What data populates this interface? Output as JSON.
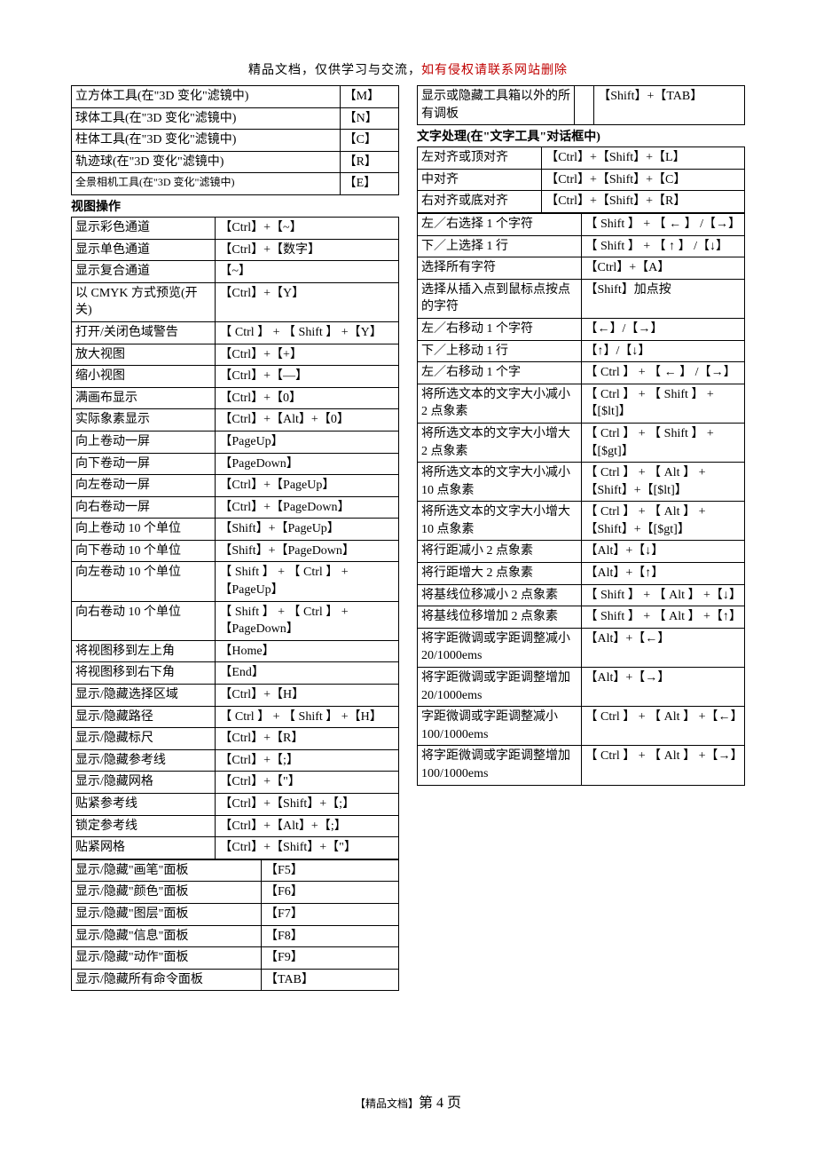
{
  "header": {
    "black": "精品文档，仅供学习与交流，",
    "red": "如有侵权请联系网站删除"
  },
  "footer": {
    "label": "【精品文档】",
    "page": "第 4 页"
  },
  "left": {
    "tools3d": [
      {
        "name": "立方体工具(在\"3D 变化\"滤镜中)",
        "key": "【M】"
      },
      {
        "name": "球体工具(在\"3D 变化\"滤镜中)",
        "key": "【N】"
      },
      {
        "name": "柱体工具(在\"3D 变化\"滤镜中)",
        "key": "【C】"
      },
      {
        "name": "轨迹球(在\"3D 变化\"滤镜中)",
        "key": "【R】"
      },
      {
        "name": "全景相机工具(在\"3D 变化\"滤镜中)",
        "key": "【E】",
        "small": true
      }
    ],
    "section_view": "视图操作",
    "view": [
      {
        "name": "显示彩色通道",
        "key": "【Ctrl】+【~】"
      },
      {
        "name": "显示单色通道",
        "key": "【Ctrl】+【数字】"
      },
      {
        "name": "显示复合通道",
        "key": "【~】"
      },
      {
        "name": "以 CMYK 方式预览(开关)",
        "key": "【Ctrl】+【Y】"
      },
      {
        "name": "打开/关闭色域警告",
        "key": "【 Ctrl 】 + 【 Shift 】 +【Y】"
      },
      {
        "name": "放大视图",
        "key": "【Ctrl】+【+】"
      },
      {
        "name": "缩小视图",
        "key": "【Ctrl】+【—】"
      },
      {
        "name": "满画布显示",
        "key": "【Ctrl】+【0】"
      },
      {
        "name": "实际象素显示",
        "key": "【Ctrl】+【Alt】+【0】"
      },
      {
        "name": "向上卷动一屏",
        "key": "【PageUp】"
      },
      {
        "name": "向下卷动一屏",
        "key": "【PageDown】"
      },
      {
        "name": "向左卷动一屏",
        "key": "【Ctrl】+【PageUp】"
      },
      {
        "name": "向右卷动一屏",
        "key": "【Ctrl】+【PageDown】"
      },
      {
        "name": "向上卷动 10 个单位",
        "key": "【Shift】+【PageUp】"
      },
      {
        "name": "向下卷动 10 个单位",
        "key": "【Shift】+【PageDown】"
      },
      {
        "name": "向左卷动 10 个单位",
        "key": "【 Shift 】 + 【 Ctrl 】 +【PageUp】"
      },
      {
        "name": "向右卷动 10 个单位",
        "key": "【 Shift 】 + 【 Ctrl 】 +【PageDown】"
      },
      {
        "name": "将视图移到左上角",
        "key": "【Home】"
      },
      {
        "name": "将视图移到右下角",
        "key": "【End】"
      },
      {
        "name": "显示/隐藏选择区域",
        "key": "【Ctrl】+【H】"
      },
      {
        "name": "显示/隐藏路径",
        "key": "【 Ctrl 】 + 【 Shift 】 +【H】"
      },
      {
        "name": "显示/隐藏标尺",
        "key": "【Ctrl】+【R】"
      },
      {
        "name": "显示/隐藏参考线",
        "key": "【Ctrl】+【;】"
      },
      {
        "name": "显示/隐藏网格",
        "key": "【Ctrl】+【\"】"
      },
      {
        "name": "贴紧参考线",
        "key": "【Ctrl】+【Shift】+【;】"
      },
      {
        "name": "锁定参考线",
        "key": "【Ctrl】+【Alt】+【;】"
      },
      {
        "name": "贴紧网格",
        "key": "【Ctrl】+【Shift】+【\"】"
      }
    ],
    "panels": [
      {
        "name": "显示/隐藏\"画笔\"面板",
        "key": "【F5】"
      },
      {
        "name": "显示/隐藏\"颜色\"面板",
        "key": "【F6】"
      },
      {
        "name": "显示/隐藏\"图层\"面板",
        "key": "【F7】"
      },
      {
        "name": "显示/隐藏\"信息\"面板",
        "key": "【F8】"
      },
      {
        "name": "显示/隐藏\"动作\"面板",
        "key": "【F9】"
      },
      {
        "name": "显示/隐藏所有命令面板",
        "key": "【TAB】"
      }
    ]
  },
  "right": {
    "top_name": "显示或隐藏工具箱以外的所有调板",
    "top_key": "【Shift】+【TAB】",
    "section_text": "文字处理(在\"文字工具\"对话框中)",
    "align": [
      {
        "name": "左对齐或顶对齐",
        "key": "【Ctrl】+【Shift】+【L】"
      },
      {
        "name": "中对齐",
        "key": "【Ctrl】+【Shift】+【C】"
      },
      {
        "name": "右对齐或底对齐",
        "key": "【Ctrl】+【Shift】+【R】"
      }
    ],
    "text": [
      {
        "name": "左／右选择 1 个字符",
        "key": "【 Shift 】 + 【 ← 】 /【→】"
      },
      {
        "name": "下／上选择 1 行",
        "key": "【 Shift 】 + 【 ↑ 】 /【↓】"
      },
      {
        "name": "选择所有字符",
        "key": "【Ctrl】+【A】"
      },
      {
        "name": "选择从插入点到鼠标点按点的字符",
        "key": "【Shift】加点按"
      },
      {
        "name": "左／右移动 1 个字符",
        "key": "【←】/【→】"
      },
      {
        "name": "下／上移动 1 行",
        "key": "【↑】/【↓】"
      },
      {
        "name": "左／右移动 1 个字",
        "key": "【 Ctrl 】 + 【 ← 】 /【→】"
      },
      {
        "name": "将所选文本的文字大小减小 2 点象素",
        "key": "【 Ctrl 】 + 【 Shift 】 +【[$lt]】"
      },
      {
        "name": "将所选文本的文字大小增大 2 点象素",
        "key": "【 Ctrl 】 + 【 Shift 】 +【[$gt]】"
      },
      {
        "name": "将所选文本的文字大小减小 10 点象素",
        "key": "【 Ctrl 】 + 【 Alt 】 +【Shift】+【[$lt]】"
      },
      {
        "name": "将所选文本的文字大小增大 10 点象素",
        "key": "【 Ctrl 】 + 【 Alt 】 +【Shift】+【[$gt]】"
      },
      {
        "name": "将行距减小 2 点象素",
        "key": "【Alt】+【↓】"
      },
      {
        "name": "将行距增大 2 点象素",
        "key": "【Alt】+【↑】"
      },
      {
        "name": "将基线位移减小 2 点象素",
        "key": "【 Shift 】 + 【 Alt 】 +【↓】"
      },
      {
        "name": "将基线位移增加 2 点象素",
        "key": "【 Shift 】 + 【 Alt 】 +【↑】"
      },
      {
        "name": "将字距微调或字距调整减小 20/1000ems",
        "key": "【Alt】+【←】"
      },
      {
        "name": "将字距微调或字距调整增加 20/1000ems",
        "key": "【Alt】+【→】"
      },
      {
        "name": "字距微调或字距调整减小 100/1000ems",
        "key": "【 Ctrl 】 + 【 Alt 】 +【←】"
      },
      {
        "name": "将字距微调或字距调整增加 100/1000ems",
        "key": "【 Ctrl 】 + 【 Alt 】 +【→】"
      }
    ]
  }
}
